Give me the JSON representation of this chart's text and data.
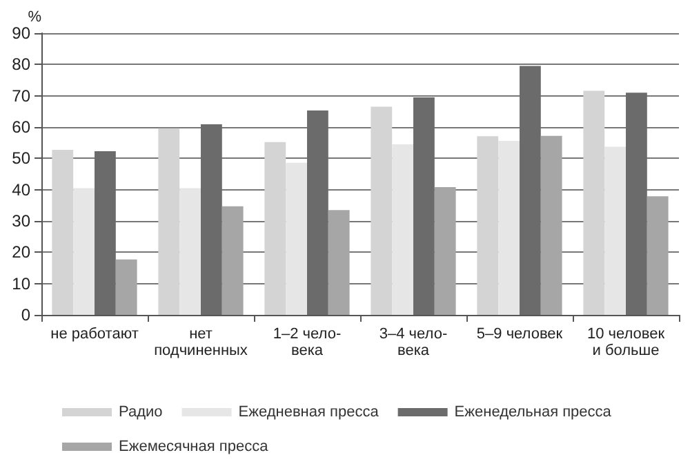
{
  "chart_data": {
    "type": "bar",
    "ylabel": "%",
    "categories": [
      "не работают",
      "нет\nподчиненных",
      "1–2 чело-\nвека",
      "3–4 чело-\nвека",
      "5–9 человек",
      "10 человек\nи больше"
    ],
    "series": [
      {
        "name": "Радио",
        "color": "#d4d4d4",
        "values": [
          52.7,
          59.6,
          55.2,
          66.5,
          57.1,
          71.6
        ]
      },
      {
        "name": "Ежедневная пресса",
        "color": "#e6e6e6",
        "values": [
          40.5,
          40.5,
          48.6,
          54.5,
          55.6,
          53.7
        ]
      },
      {
        "name": "Еженедельная пресса",
        "color": "#6b6b6b",
        "values": [
          52.3,
          60.9,
          65.3,
          69.5,
          79.5,
          71
        ]
      },
      {
        "name": "Ежемесячная пресса",
        "color": "#a6a6a6",
        "values": [
          17.7,
          34.7,
          33.5,
          40.8,
          57.2,
          37.9
        ]
      }
    ],
    "ylim": [
      0,
      90
    ],
    "yticks": [
      0,
      10,
      20,
      30,
      40,
      50,
      60,
      70,
      80,
      90
    ],
    "grid": "y",
    "legend": "bottom"
  }
}
